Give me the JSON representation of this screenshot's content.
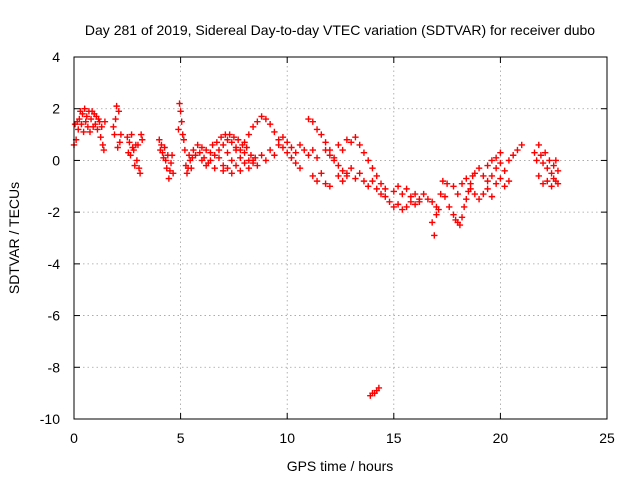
{
  "chart_data": {
    "type": "scatter",
    "title": "Day 281 of 2019, Sidereal Day-to-day VTEC variation (SDTVAR) for receiver dubo",
    "xlabel": "GPS time / hours",
    "ylabel": "SDTVAR / TECUs",
    "xlim": [
      0,
      25
    ],
    "ylim": [
      -10,
      4
    ],
    "xticks": [
      0,
      5,
      10,
      15,
      20,
      25
    ],
    "yticks": [
      -10,
      -8,
      -6,
      -4,
      -2,
      0,
      2,
      4
    ],
    "grid": true,
    "marker": "plus",
    "colors": {
      "series": "#ff0000",
      "grid": "#a0a0a0",
      "axis": "#000000",
      "background": "#ffffff"
    },
    "series": [
      {
        "name": "SDTVAR",
        "points": [
          [
            0.0,
            0.6
          ],
          [
            0.05,
            1.4
          ],
          [
            0.1,
            0.8
          ],
          [
            0.15,
            1.5
          ],
          [
            0.2,
            1.2
          ],
          [
            0.25,
            1.6
          ],
          [
            0.3,
            1.9
          ],
          [
            0.35,
            1.4
          ],
          [
            0.4,
            1.8
          ],
          [
            0.45,
            1.1
          ],
          [
            0.5,
            2.0
          ],
          [
            0.55,
            1.5
          ],
          [
            0.6,
            1.7
          ],
          [
            0.65,
            1.3
          ],
          [
            0.7,
            1.9
          ],
          [
            0.75,
            1.1
          ],
          [
            0.8,
            1.6
          ],
          [
            0.85,
            1.9
          ],
          [
            0.9,
            1.3
          ],
          [
            0.95,
            1.8
          ],
          [
            1.0,
            1.4
          ],
          [
            1.05,
            1.7
          ],
          [
            1.1,
            1.2
          ],
          [
            1.15,
            1.6
          ],
          [
            1.2,
            1.5
          ],
          [
            1.25,
            0.9
          ],
          [
            1.3,
            1.3
          ],
          [
            1.35,
            0.6
          ],
          [
            1.4,
            0.4
          ],
          [
            1.45,
            1.5
          ],
          [
            1.85,
            1.3
          ],
          [
            1.9,
            1.0
          ],
          [
            1.95,
            1.6
          ],
          [
            2.0,
            2.1
          ],
          [
            2.05,
            0.5
          ],
          [
            2.1,
            1.9
          ],
          [
            2.15,
            0.7
          ],
          [
            2.2,
            1.0
          ],
          [
            2.5,
            0.9
          ],
          [
            2.55,
            0.3
          ],
          [
            2.6,
            0.7
          ],
          [
            2.65,
            0.2
          ],
          [
            2.7,
            1.0
          ],
          [
            2.75,
            0.5
          ],
          [
            2.8,
            0.4
          ],
          [
            2.85,
            -0.2
          ],
          [
            2.9,
            0.6
          ],
          [
            2.95,
            0.0
          ],
          [
            3.0,
            0.6
          ],
          [
            3.05,
            -0.3
          ],
          [
            3.1,
            -0.5
          ],
          [
            3.15,
            1.0
          ],
          [
            3.2,
            0.8
          ],
          [
            4.0,
            0.8
          ],
          [
            4.05,
            0.4
          ],
          [
            4.1,
            0.6
          ],
          [
            4.15,
            0.3
          ],
          [
            4.2,
            0.1
          ],
          [
            4.25,
            0.5
          ],
          [
            4.3,
            0.0
          ],
          [
            4.35,
            -0.3
          ],
          [
            4.4,
            0.2
          ],
          [
            4.45,
            -0.7
          ],
          [
            4.5,
            -0.4
          ],
          [
            4.55,
            -0.1
          ],
          [
            4.6,
            0.2
          ],
          [
            4.65,
            -0.5
          ],
          [
            4.9,
            1.2
          ],
          [
            4.95,
            2.2
          ],
          [
            5.0,
            1.9
          ],
          [
            5.05,
            1.5
          ],
          [
            5.1,
            1.0
          ],
          [
            5.15,
            0.8
          ],
          [
            5.2,
            0.4
          ],
          [
            5.25,
            -0.2
          ],
          [
            5.3,
            -0.5
          ],
          [
            5.35,
            -0.3
          ],
          [
            5.4,
            0.2
          ],
          [
            5.45,
            0.0
          ],
          [
            5.5,
            -0.3
          ],
          [
            5.55,
            0.1
          ],
          [
            5.6,
            0.4
          ],
          [
            5.7,
            0.2
          ],
          [
            5.8,
            0.6
          ],
          [
            5.9,
            0.3
          ],
          [
            6.0,
            0.5
          ],
          [
            6.1,
            0.1
          ],
          [
            6.2,
            0.4
          ],
          [
            6.3,
            -0.1
          ],
          [
            6.4,
            0.3
          ],
          [
            6.5,
            0.6
          ],
          [
            6.6,
            0.2
          ],
          [
            6.7,
            0.7
          ],
          [
            6.8,
            0.4
          ],
          [
            6.9,
            0.9
          ],
          [
            7.0,
            0.6
          ],
          [
            7.1,
            1.0
          ],
          [
            7.2,
            0.8
          ],
          [
            7.3,
            1.0
          ],
          [
            7.4,
            0.7
          ],
          [
            7.5,
            0.9
          ],
          [
            7.6,
            0.5
          ],
          [
            7.7,
            0.8
          ],
          [
            7.8,
            0.4
          ],
          [
            7.9,
            0.6
          ],
          [
            8.0,
            0.3
          ],
          [
            8.1,
            0.5
          ],
          [
            8.2,
            0.0
          ],
          [
            8.3,
            0.2
          ],
          [
            8.4,
            -0.1
          ],
          [
            8.5,
            0.1
          ],
          [
            6.0,
            0.0
          ],
          [
            6.2,
            -0.2
          ],
          [
            6.4,
            0.0
          ],
          [
            6.6,
            -0.3
          ],
          [
            6.8,
            0.1
          ],
          [
            7.0,
            -0.2
          ],
          [
            7.2,
            0.3
          ],
          [
            7.4,
            0.0
          ],
          [
            7.6,
            0.4
          ],
          [
            7.8,
            0.1
          ],
          [
            8.0,
            0.7
          ],
          [
            8.2,
            1.0
          ],
          [
            8.4,
            1.3
          ],
          [
            8.6,
            1.5
          ],
          [
            8.8,
            1.7
          ],
          [
            9.0,
            1.6
          ],
          [
            9.2,
            1.4
          ],
          [
            9.4,
            1.1
          ],
          [
            9.6,
            0.8
          ],
          [
            9.8,
            0.5
          ],
          [
            10.0,
            0.3
          ],
          [
            10.2,
            0.1
          ],
          [
            10.4,
            -0.1
          ],
          [
            10.6,
            -0.3
          ],
          [
            7.0,
            -0.4
          ],
          [
            7.2,
            -0.3
          ],
          [
            7.4,
            -0.5
          ],
          [
            7.6,
            -0.2
          ],
          [
            7.8,
            -0.4
          ],
          [
            8.0,
            -0.1
          ],
          [
            8.2,
            -0.3
          ],
          [
            8.4,
            0.0
          ],
          [
            8.6,
            -0.2
          ],
          [
            8.8,
            0.2
          ],
          [
            9.0,
            0.0
          ],
          [
            9.2,
            0.4
          ],
          [
            9.4,
            0.2
          ],
          [
            9.6,
            0.6
          ],
          [
            9.8,
            0.9
          ],
          [
            10.0,
            0.7
          ],
          [
            10.2,
            0.5
          ],
          [
            10.4,
            0.3
          ],
          [
            10.6,
            0.6
          ],
          [
            10.8,
            0.4
          ],
          [
            11.0,
            0.2
          ],
          [
            11.2,
            0.4
          ],
          [
            11.4,
            0.1
          ],
          [
            11.0,
            1.6
          ],
          [
            11.2,
            1.5
          ],
          [
            11.4,
            1.2
          ],
          [
            11.6,
            1.0
          ],
          [
            11.8,
            0.7
          ],
          [
            12.0,
            0.4
          ],
          [
            12.2,
            0.1
          ],
          [
            12.4,
            -0.2
          ],
          [
            12.6,
            -0.4
          ],
          [
            12.8,
            -0.6
          ],
          [
            11.2,
            -0.6
          ],
          [
            11.4,
            -0.8
          ],
          [
            11.6,
            -0.5
          ],
          [
            11.8,
            -0.9
          ],
          [
            12.0,
            -1.0
          ],
          [
            11.8,
            0.4
          ],
          [
            12.0,
            0.2
          ],
          [
            12.2,
            0.0
          ],
          [
            12.4,
            0.6
          ],
          [
            12.6,
            0.4
          ],
          [
            12.8,
            0.8
          ],
          [
            13.0,
            0.7
          ],
          [
            13.2,
            0.9
          ],
          [
            13.4,
            0.6
          ],
          [
            13.6,
            0.3
          ],
          [
            13.8,
            0.0
          ],
          [
            14.0,
            -0.3
          ],
          [
            14.2,
            -0.6
          ],
          [
            14.4,
            -0.9
          ],
          [
            14.6,
            -1.1
          ],
          [
            12.4,
            -0.6
          ],
          [
            12.6,
            -0.8
          ],
          [
            12.8,
            -0.5
          ],
          [
            13.0,
            -0.3
          ],
          [
            13.2,
            -0.7
          ],
          [
            13.4,
            -0.5
          ],
          [
            13.6,
            -0.8
          ],
          [
            13.8,
            -1.0
          ],
          [
            14.0,
            -0.8
          ],
          [
            14.2,
            -1.1
          ],
          [
            14.4,
            -1.3
          ],
          [
            14.6,
            -1.4
          ],
          [
            14.8,
            -1.6
          ],
          [
            15.0,
            -1.8
          ],
          [
            15.2,
            -1.7
          ],
          [
            15.4,
            -1.9
          ],
          [
            15.6,
            -1.8
          ],
          [
            15.8,
            -1.6
          ],
          [
            15.0,
            -1.2
          ],
          [
            15.2,
            -1.0
          ],
          [
            15.4,
            -1.3
          ],
          [
            15.6,
            -1.1
          ],
          [
            15.8,
            -1.4
          ],
          [
            16.0,
            -1.3
          ],
          [
            16.2,
            -1.5
          ],
          [
            16.0,
            -1.7
          ],
          [
            16.2,
            -1.6
          ],
          [
            16.4,
            -1.3
          ],
          [
            16.6,
            -1.5
          ],
          [
            16.8,
            -1.6
          ],
          [
            17.0,
            -1.8
          ],
          [
            17.2,
            -1.3
          ],
          [
            16.8,
            -2.4
          ],
          [
            16.9,
            -2.9
          ],
          [
            17.0,
            -2.1
          ],
          [
            17.1,
            -1.9
          ],
          [
            17.3,
            -0.8
          ],
          [
            17.5,
            -0.9
          ],
          [
            17.4,
            -1.4
          ],
          [
            17.6,
            -1.8
          ],
          [
            17.8,
            -2.1
          ],
          [
            17.9,
            -2.3
          ],
          [
            18.0,
            -2.4
          ],
          [
            18.1,
            -2.5
          ],
          [
            18.2,
            -2.2
          ],
          [
            18.3,
            -1.8
          ],
          [
            18.4,
            -1.5
          ],
          [
            18.5,
            -1.2
          ],
          [
            18.6,
            -0.9
          ],
          [
            18.7,
            -0.6
          ],
          [
            17.8,
            -1.0
          ],
          [
            18.0,
            -1.3
          ],
          [
            18.2,
            -0.9
          ],
          [
            18.4,
            -0.7
          ],
          [
            18.6,
            -1.1
          ],
          [
            18.8,
            -1.3
          ],
          [
            19.0,
            -1.5
          ],
          [
            19.2,
            -1.3
          ],
          [
            19.4,
            -1.1
          ],
          [
            19.6,
            -1.4
          ],
          [
            18.8,
            -0.5
          ],
          [
            19.0,
            -0.3
          ],
          [
            19.2,
            -0.6
          ],
          [
            19.4,
            -0.2
          ],
          [
            19.6,
            0.0
          ],
          [
            19.8,
            -0.3
          ],
          [
            20.0,
            -0.1
          ],
          [
            20.2,
            -0.4
          ],
          [
            20.4,
            0.0
          ],
          [
            20.6,
            0.2
          ],
          [
            20.8,
            0.4
          ],
          [
            21.0,
            0.6
          ],
          [
            19.4,
            -0.8
          ],
          [
            19.6,
            -0.6
          ],
          [
            19.8,
            -0.9
          ],
          [
            20.0,
            -0.7
          ],
          [
            20.2,
            -1.0
          ],
          [
            20.4,
            -0.8
          ],
          [
            19.8,
            0.1
          ],
          [
            20.0,
            0.3
          ],
          [
            21.6,
            0.3
          ],
          [
            21.7,
            0.0
          ],
          [
            21.8,
            0.6
          ],
          [
            21.9,
            0.2
          ],
          [
            22.0,
            -0.1
          ],
          [
            22.1,
            0.3
          ],
          [
            22.2,
            -0.3
          ],
          [
            22.3,
            0.0
          ],
          [
            22.4,
            -0.5
          ],
          [
            22.5,
            -0.2
          ],
          [
            22.6,
            -0.8
          ],
          [
            22.7,
            -0.4
          ],
          [
            22.2,
            -0.8
          ],
          [
            22.4,
            -1.0
          ],
          [
            22.5,
            -0.7
          ],
          [
            22.7,
            -0.9
          ],
          [
            21.8,
            -0.6
          ],
          [
            22.0,
            -0.9
          ],
          [
            22.6,
            0.0
          ],
          [
            13.9,
            -9.1
          ],
          [
            14.0,
            -9.0
          ],
          [
            14.1,
            -9.0
          ],
          [
            14.2,
            -8.9
          ],
          [
            14.3,
            -8.8
          ]
        ]
      }
    ]
  }
}
